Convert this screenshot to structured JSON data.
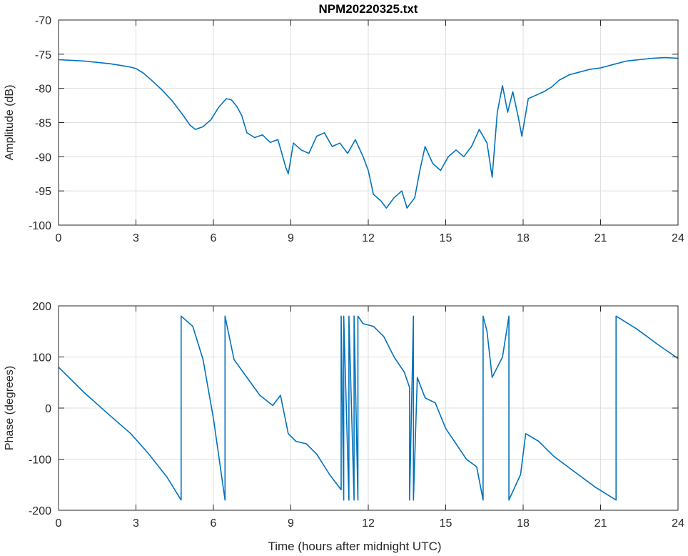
{
  "chart_data": [
    {
      "type": "line",
      "title": "NPM20220325.txt",
      "xlabel": "",
      "ylabel": "Amplitude (dB)",
      "xlim": [
        0,
        24
      ],
      "ylim": [
        -100,
        -70
      ],
      "xticks": [
        0,
        3,
        6,
        9,
        12,
        15,
        18,
        21,
        24
      ],
      "xtick_labels": [
        "0",
        "3",
        "6",
        "9",
        "12",
        "15",
        "18",
        "21",
        "24"
      ],
      "yticks": [
        -100,
        -95,
        -90,
        -85,
        -80,
        -75,
        -70
      ],
      "ytick_labels": [
        "-100",
        "-95",
        "-90",
        "-85",
        "-80",
        "-75",
        "-70"
      ],
      "grid": true,
      "color": "#0072bd",
      "series": [
        {
          "x": [
            0,
            0.5,
            1,
            1.5,
            2,
            2.5,
            2.8,
            3,
            3.3,
            3.6,
            4,
            4.4,
            4.8,
            5.1,
            5.3,
            5.6,
            5.9,
            6.2,
            6.5,
            6.7,
            6.9,
            7.1,
            7.3,
            7.6,
            7.9,
            8.2,
            8.5,
            8.8,
            8.9,
            9.1,
            9.4,
            9.7,
            10,
            10.3,
            10.6,
            10.9,
            11.2,
            11.5,
            11.8,
            12,
            12.2,
            12.5,
            12.7,
            13,
            13.3,
            13.5,
            13.8,
            14,
            14.2,
            14.5,
            14.8,
            15.1,
            15.4,
            15.7,
            16,
            16.3,
            16.6,
            16.8,
            17,
            17.2,
            17.4,
            17.6,
            17.8,
            17.95,
            18.2,
            18.5,
            18.8,
            19.1,
            19.4,
            19.8,
            20.2,
            20.6,
            21,
            21.5,
            22,
            22.5,
            23,
            23.5,
            24
          ],
          "y": [
            -75.8,
            -75.9,
            -76.0,
            -76.2,
            -76.4,
            -76.7,
            -76.9,
            -77.1,
            -77.8,
            -78.8,
            -80.2,
            -81.8,
            -83.8,
            -85.4,
            -86.0,
            -85.6,
            -84.6,
            -82.8,
            -81.5,
            -81.7,
            -82.6,
            -84.0,
            -86.5,
            -87.2,
            -86.8,
            -87.9,
            -87.5,
            -91.5,
            -92.5,
            -88.0,
            -89.0,
            -89.5,
            -87.0,
            -86.5,
            -88.5,
            -88.0,
            -89.5,
            -87.5,
            -90.0,
            -92.0,
            -95.5,
            -96.5,
            -97.5,
            -96.0,
            -95.0,
            -97.5,
            -96.0,
            -92.0,
            -88.5,
            -91.0,
            -92.0,
            -90.0,
            -89.0,
            -90.0,
            -88.5,
            -86.0,
            -88.0,
            -93.0,
            -83.5,
            -79.6,
            -83.5,
            -80.5,
            -84.0,
            -87.0,
            -81.5,
            -81.0,
            -80.5,
            -79.8,
            -78.8,
            -78.0,
            -77.6,
            -77.2,
            -77.0,
            -76.5,
            -76.0,
            -75.8,
            -75.6,
            -75.5,
            -75.6
          ]
        }
      ]
    },
    {
      "type": "line",
      "title": "",
      "xlabel": "Time (hours after midnight UTC)",
      "ylabel": "Phase (degrees)",
      "xlim": [
        0,
        24
      ],
      "ylim": [
        -200,
        200
      ],
      "xticks": [
        0,
        3,
        6,
        9,
        12,
        15,
        18,
        21,
        24
      ],
      "xtick_labels": [
        "0",
        "3",
        "6",
        "9",
        "12",
        "15",
        "18",
        "21",
        "24"
      ],
      "yticks": [
        -200,
        -100,
        0,
        100,
        200
      ],
      "ytick_labels": [
        "-200",
        "-100",
        "0",
        "100",
        "200"
      ],
      "grid": true,
      "color": "#0072bd",
      "series": [
        {
          "x": [
            0,
            1,
            2,
            2.8,
            3.5,
            4.2,
            4.75,
            4.75,
            5.2,
            5.6,
            6.0,
            6.45,
            6.45,
            6.8,
            7.3,
            7.8,
            8.3,
            8.6,
            8.9,
            9.2,
            9.6,
            10.0,
            10.5,
            10.95,
            10.95,
            11.05,
            11.05,
            11.25,
            11.25,
            11.45,
            11.45,
            11.6,
            11.6,
            11.8,
            12.2,
            12.6,
            13.0,
            13.4,
            13.6,
            13.6,
            13.75,
            13.75,
            13.9,
            14.2,
            14.6,
            15.0,
            15.4,
            15.8,
            16.2,
            16.45,
            16.45,
            16.6,
            16.8,
            17.2,
            17.45,
            17.45,
            17.9,
            18.1,
            18.6,
            19.2,
            20.0,
            20.8,
            21.6,
            21.6,
            22.4,
            23.2,
            24
          ],
          "y": [
            80,
            30,
            -15,
            -50,
            -90,
            -135,
            -180,
            180,
            160,
            95,
            -20,
            -180,
            180,
            95,
            60,
            25,
            5,
            25,
            -50,
            -65,
            -70,
            -90,
            -130,
            -160,
            180,
            -180,
            180,
            -180,
            180,
            -180,
            180,
            -180,
            180,
            165,
            160,
            140,
            100,
            70,
            40,
            -180,
            180,
            -180,
            60,
            20,
            10,
            -40,
            -70,
            -100,
            -115,
            -180,
            180,
            150,
            60,
            100,
            180,
            -180,
            -130,
            -50,
            -65,
            -95,
            -125,
            -155,
            -180,
            180,
            155,
            125,
            97
          ]
        }
      ]
    }
  ]
}
